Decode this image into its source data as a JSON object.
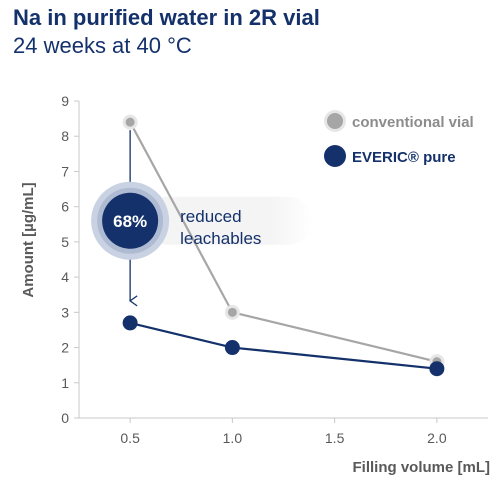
{
  "title": "Na in purified water in 2R vial",
  "subtitle": "24 weeks at 40 °C",
  "chart_data": {
    "type": "line",
    "xlabel": "Filling volume [mL]",
    "ylabel": "Amount [µg/mL]",
    "xlim": [
      0.25,
      2.25
    ],
    "ylim": [
      0,
      9
    ],
    "xticks": [
      "0.5",
      "1.0",
      "1.5",
      "2.0"
    ],
    "xtick_values": [
      0.5,
      1.0,
      1.5,
      2.0
    ],
    "yticks": [
      "0",
      "1",
      "2",
      "3",
      "4",
      "5",
      "6",
      "7",
      "8",
      "9"
    ],
    "grid": false,
    "legend_position": "top-right",
    "series": [
      {
        "name": "conventional vial",
        "color": "#a6a6a6",
        "x": [
          0.5,
          1.0,
          2.0
        ],
        "y": [
          8.4,
          3.0,
          1.6
        ]
      },
      {
        "name": "EVERIC® pure",
        "color": "#14316b",
        "x": [
          0.5,
          1.0,
          2.0
        ],
        "y": [
          2.7,
          2.0,
          1.4
        ]
      }
    ],
    "annotation": {
      "badge_text": "68%",
      "label_line1": "reduced",
      "label_line2": "leachables",
      "badge_color": "#14316b"
    }
  }
}
